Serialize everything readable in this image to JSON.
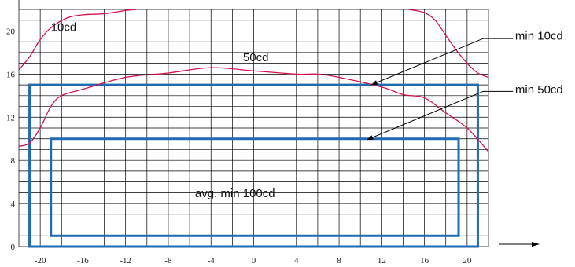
{
  "chart_data": {
    "type": "line",
    "title": "",
    "xlabel": "",
    "ylabel": "",
    "xlim": [
      -22,
      22
    ],
    "ylim": [
      0,
      22
    ],
    "x_ticks": [
      -20,
      -16,
      -12,
      -8,
      -4,
      0,
      4,
      8,
      12,
      16,
      20
    ],
    "y_ticks": [
      0,
      4,
      8,
      12,
      16,
      20
    ],
    "grid": true,
    "colors": {
      "curve": "#d4124a",
      "zone": "#1f6ab0",
      "grid": "#000000",
      "text": "#111111"
    },
    "curves": [
      {
        "label": "10cd",
        "points": [
          [
            -22,
            16.4
          ],
          [
            -21,
            17.6
          ],
          [
            -20,
            19.2
          ],
          [
            -19,
            20.3
          ],
          [
            -17.5,
            21.2
          ],
          [
            -16,
            21.5
          ],
          [
            -14,
            21.6
          ],
          [
            -12,
            21.9
          ],
          [
            -11,
            22
          ]
        ]
      },
      {
        "label": "10cd",
        "points": [
          [
            14.5,
            22
          ],
          [
            16,
            21.7
          ],
          [
            17,
            21
          ],
          [
            18,
            19.6
          ],
          [
            19,
            18.2
          ],
          [
            20,
            17
          ],
          [
            21,
            16.1
          ],
          [
            22,
            15.7
          ]
        ]
      },
      {
        "label": "50cd",
        "points": [
          [
            -22,
            9.3
          ],
          [
            -21,
            9.6
          ],
          [
            -20,
            11
          ],
          [
            -19,
            13
          ],
          [
            -18,
            14
          ],
          [
            -16,
            14.6
          ],
          [
            -12,
            15.7
          ],
          [
            -8,
            16.1
          ],
          [
            -4,
            16.6
          ],
          [
            0,
            16.3
          ],
          [
            4,
            16
          ],
          [
            6,
            16
          ],
          [
            8,
            15.7
          ],
          [
            12,
            14.8
          ],
          [
            14,
            14.1
          ],
          [
            16,
            13.8
          ],
          [
            18,
            12.4
          ],
          [
            20,
            11
          ],
          [
            22,
            8.8
          ]
        ]
      }
    ],
    "zones": [
      {
        "label": "min 50cd",
        "x": [
          -21,
          21
        ],
        "y": [
          0,
          15
        ]
      },
      {
        "label": "avg. min 100cd",
        "x": [
          -19,
          19.2
        ],
        "y": [
          1,
          10
        ]
      }
    ],
    "annotations": [
      {
        "text": "10cd",
        "x": -19,
        "y": 20
      },
      {
        "text": "50cd",
        "x": -1,
        "y": 17.2
      },
      {
        "text": "avg. min 100cd",
        "x": -5.5,
        "y": 4.6
      },
      {
        "text": "min 10cd",
        "x": 24.5,
        "y": 19.2
      },
      {
        "text": "min 50cd",
        "x": 24.5,
        "y": 14.2
      }
    ],
    "leaders": [
      {
        "label": "min 10cd",
        "from": [
          24.3,
          19.3
        ],
        "via": [
          21.5,
          19.3
        ],
        "to": [
          11,
          15
        ]
      },
      {
        "label": "min 50cd",
        "from": [
          24.3,
          14.4
        ],
        "via": [
          21.5,
          14.4
        ],
        "to": [
          10.6,
          9.9
        ]
      }
    ]
  }
}
